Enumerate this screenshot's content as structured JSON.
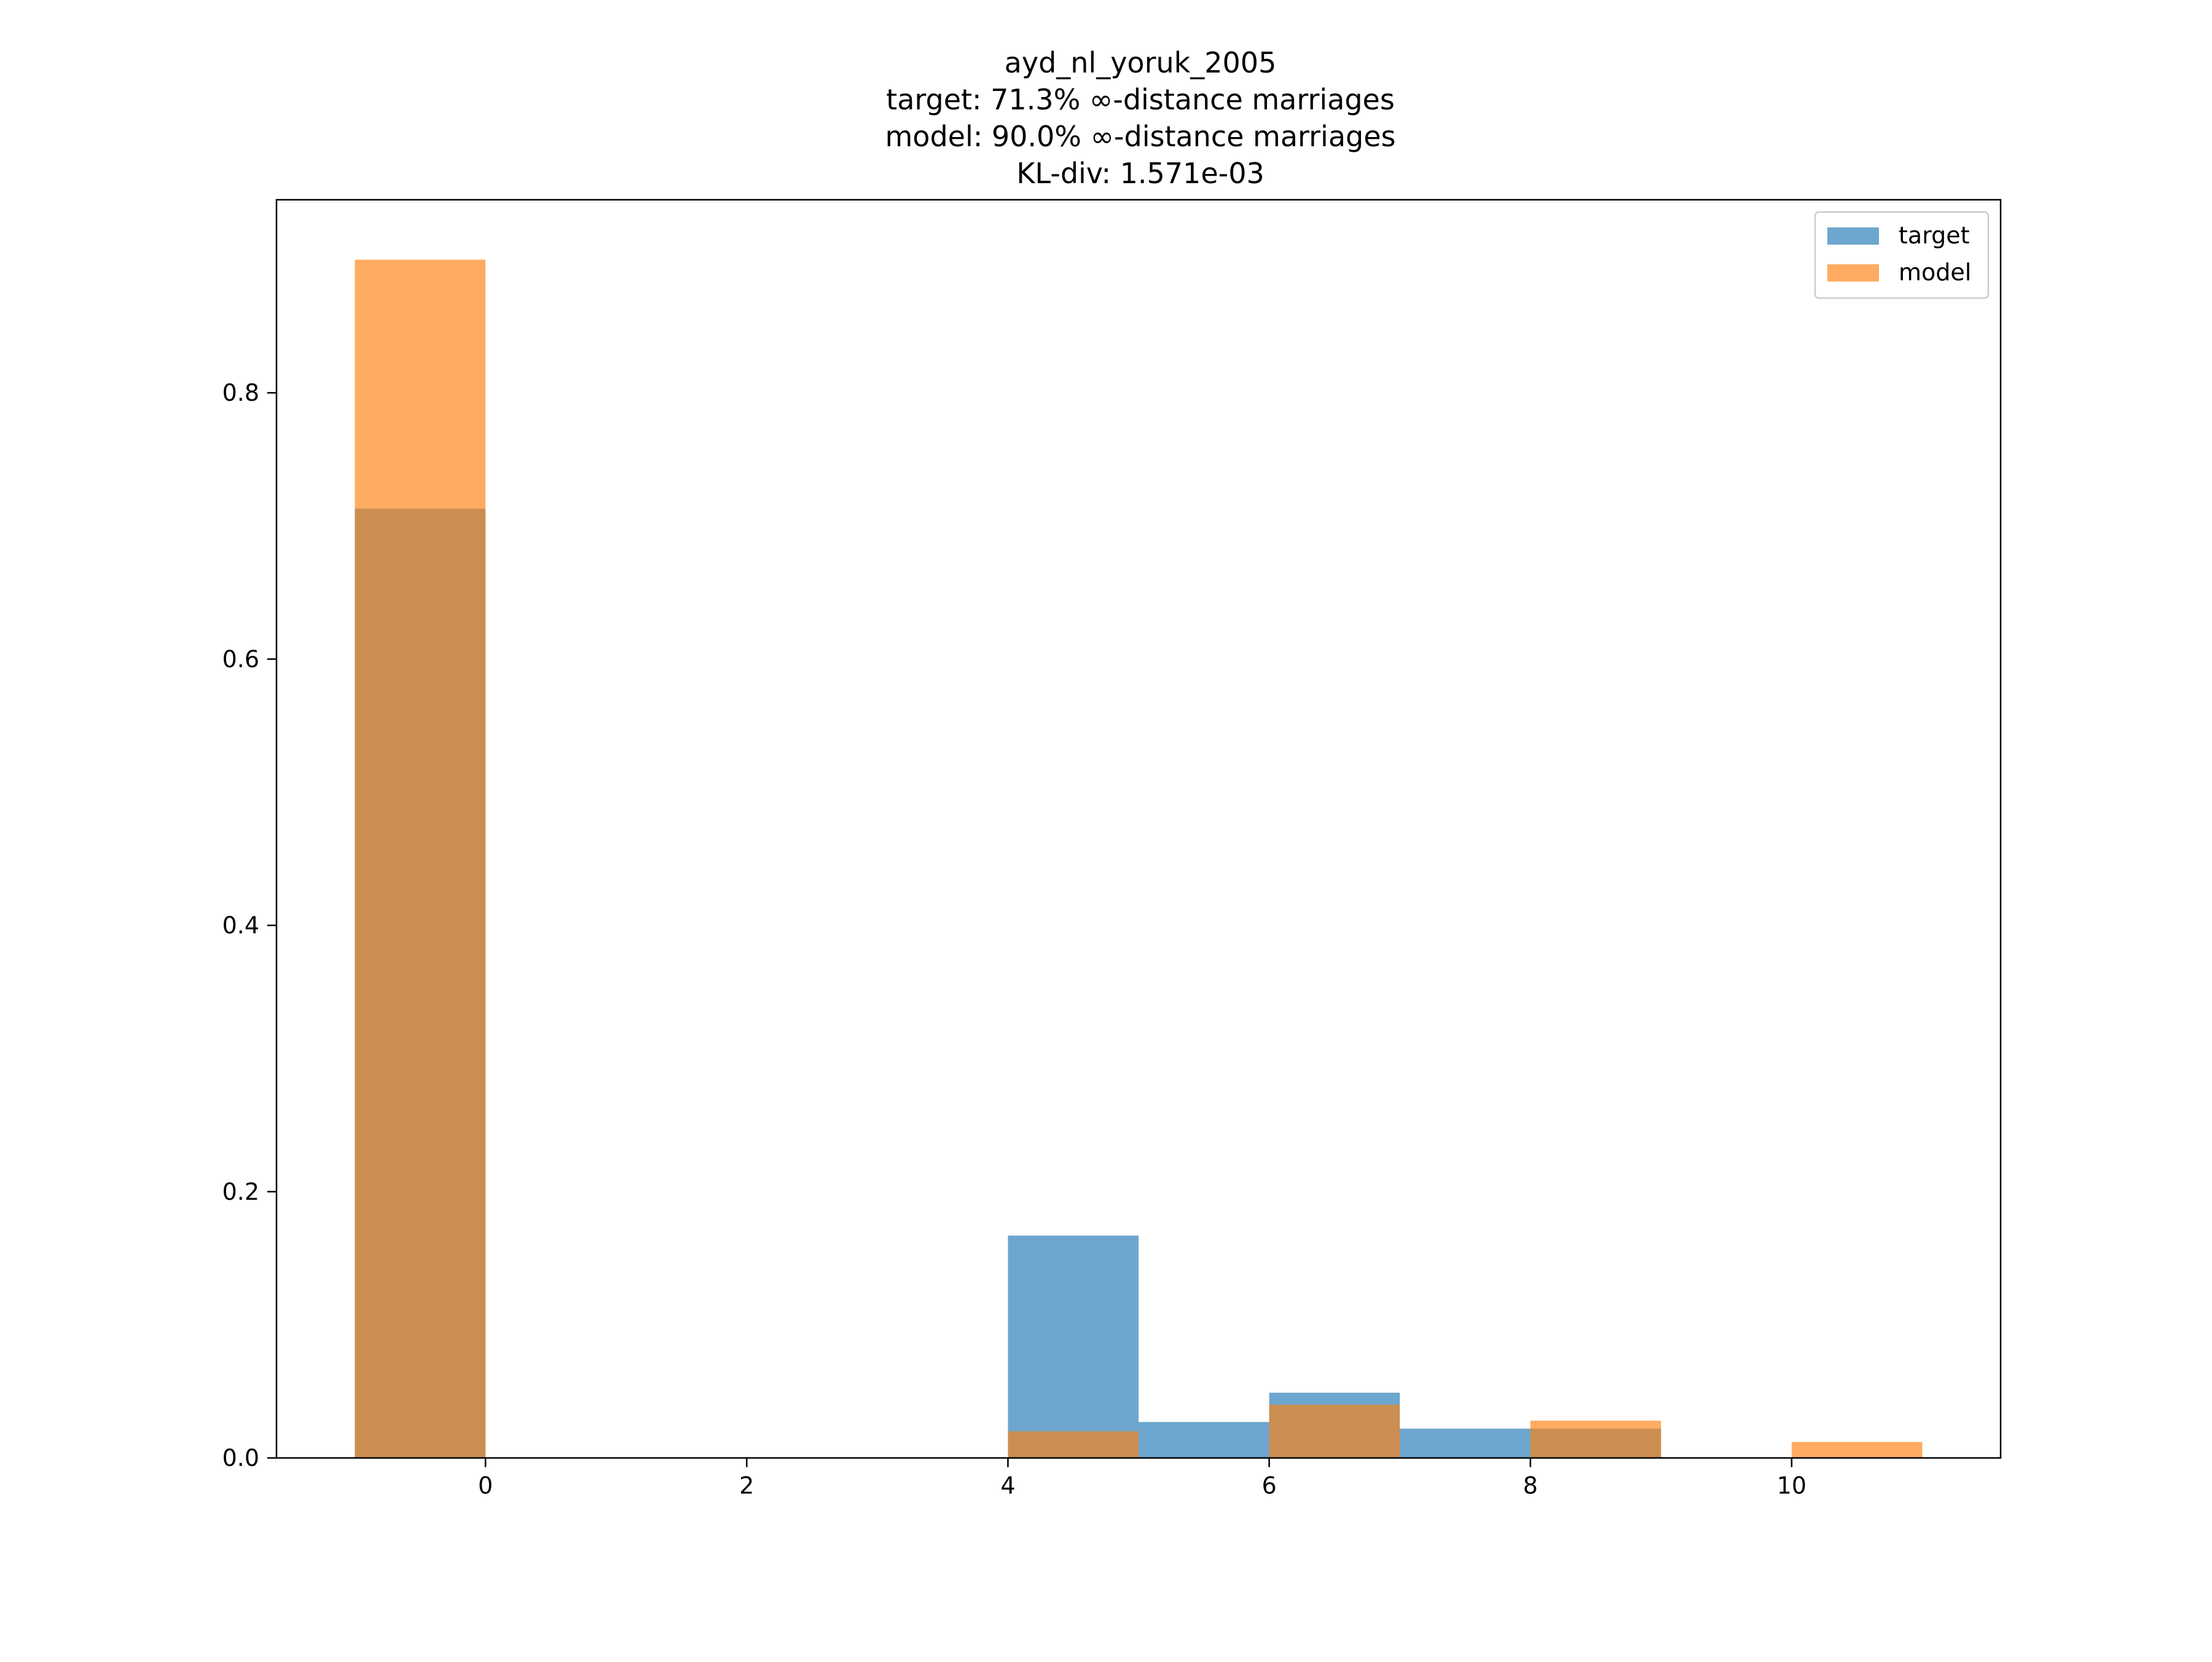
{
  "chart_data": {
    "type": "bar",
    "title_lines": [
      "ayd_nl_yoruk_2005",
      "target: 71.3% ∞-distance marriages",
      "model: 90.0% ∞-distance marriages",
      "KL-div: 1.571e-03"
    ],
    "xlabel": "",
    "ylabel": "",
    "xlim": [
      -1.6,
      11.6
    ],
    "ylim": [
      0,
      0.945
    ],
    "x_ticks": [
      0,
      2,
      4,
      6,
      8,
      10
    ],
    "y_ticks": [
      0.0,
      0.2,
      0.4,
      0.6,
      0.8
    ],
    "x_tick_labels": [
      "0",
      "2",
      "4",
      "6",
      "8",
      "10"
    ],
    "y_tick_labels": [
      "0.0",
      "0.2",
      "0.4",
      "0.6",
      "0.8"
    ],
    "grid": false,
    "legend_position": "top-right",
    "series": [
      {
        "name": "target",
        "color": "#1f77b4",
        "alpha": 0.65,
        "bins": [
          {
            "x0": -1,
            "x1": 0,
            "value": 0.713
          },
          {
            "x0": 4,
            "x1": 5,
            "value": 0.167
          },
          {
            "x0": 5,
            "x1": 6,
            "value": 0.027
          },
          {
            "x0": 6,
            "x1": 7,
            "value": 0.049
          },
          {
            "x0": 7,
            "x1": 8,
            "value": 0.022
          },
          {
            "x0": 8,
            "x1": 9,
            "value": 0.022
          }
        ]
      },
      {
        "name": "model",
        "color": "#ff7f0e",
        "alpha": 0.65,
        "bins": [
          {
            "x0": -1,
            "x1": 0,
            "value": 0.9
          },
          {
            "x0": 4,
            "x1": 5,
            "value": 0.02
          },
          {
            "x0": 6,
            "x1": 7,
            "value": 0.04
          },
          {
            "x0": 8,
            "x1": 9,
            "value": 0.028
          },
          {
            "x0": 10,
            "x1": 11,
            "value": 0.012
          }
        ]
      }
    ]
  }
}
